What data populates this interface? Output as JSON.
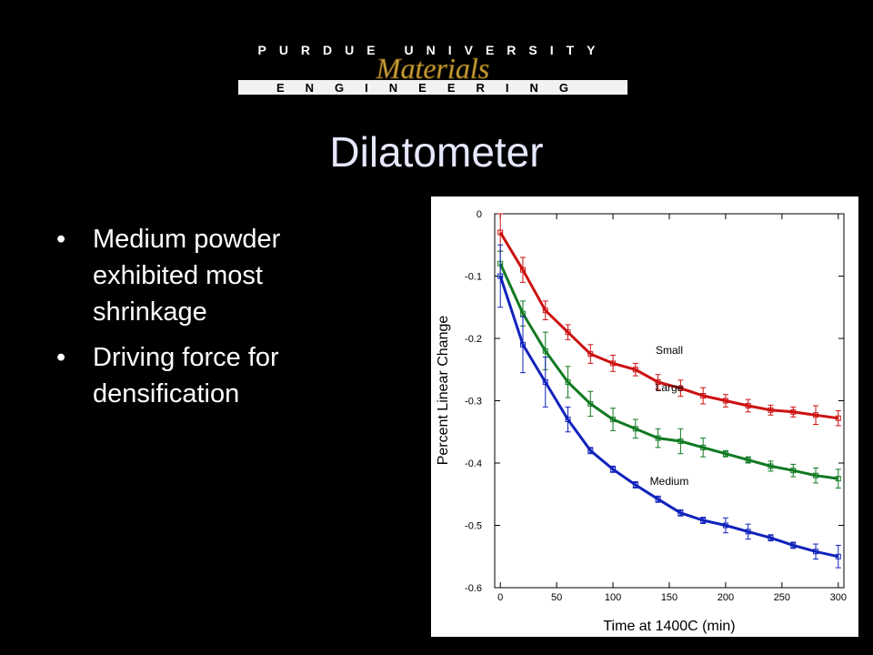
{
  "header": {
    "university": "PURDUE UNIVERSITY",
    "department": "Materials",
    "school": "ENGINEERING",
    "colors": {
      "gold": "#c9a23a",
      "black": "#000000"
    }
  },
  "slide": {
    "title": "Dilatometer",
    "bullets": [
      "Medium powder exhibited most shrinkage",
      "Driving force for densification"
    ],
    "bullet_glyph": "•"
  },
  "chart_data": {
    "type": "line",
    "title": "",
    "xlabel": "Time at 1400C (min)",
    "ylabel": "Percent Linear Change",
    "xlim": [
      -5,
      305
    ],
    "ylim": [
      -0.6,
      0
    ],
    "xticks": [
      0,
      50,
      100,
      150,
      200,
      250,
      300
    ],
    "yticks": [
      0,
      -0.1,
      -0.2,
      -0.3,
      -0.4,
      -0.5,
      -0.6
    ],
    "x": [
      0,
      20,
      40,
      60,
      80,
      100,
      120,
      140,
      160,
      180,
      200,
      220,
      240,
      260,
      280,
      300
    ],
    "series": [
      {
        "name": "Small",
        "color": "#cc1111",
        "label_at": [
          150,
          -0.225
        ],
        "values": [
          -0.03,
          -0.09,
          -0.155,
          -0.19,
          -0.225,
          -0.24,
          -0.25,
          -0.27,
          -0.28,
          -0.292,
          -0.3,
          -0.308,
          -0.315,
          -0.318,
          -0.323,
          -0.328
        ],
        "errors": [
          0.03,
          0.02,
          0.015,
          0.012,
          0.015,
          0.013,
          0.01,
          0.012,
          0.013,
          0.013,
          0.01,
          0.01,
          0.008,
          0.008,
          0.015,
          0.012
        ]
      },
      {
        "name": "Large",
        "color": "#117a22",
        "label_at": [
          150,
          -0.285
        ],
        "values": [
          -0.08,
          -0.16,
          -0.22,
          -0.27,
          -0.305,
          -0.33,
          -0.345,
          -0.36,
          -0.365,
          -0.375,
          -0.385,
          -0.395,
          -0.405,
          -0.412,
          -0.42,
          -0.425
        ],
        "errors": [
          0.02,
          0.02,
          0.03,
          0.025,
          0.02,
          0.018,
          0.015,
          0.015,
          0.02,
          0.015,
          0.005,
          0.005,
          0.008,
          0.01,
          0.012,
          0.015
        ]
      },
      {
        "name": "Medium",
        "color": "#1122bb",
        "label_at": [
          150,
          -0.435
        ],
        "values": [
          -0.1,
          -0.21,
          -0.27,
          -0.33,
          -0.38,
          -0.41,
          -0.435,
          -0.458,
          -0.48,
          -0.492,
          -0.5,
          -0.51,
          -0.52,
          -0.532,
          -0.542,
          -0.55
        ],
        "errors": [
          0.05,
          0.045,
          0.04,
          0.02,
          0.005,
          0.005,
          0.005,
          0.005,
          0.005,
          0.005,
          0.012,
          0.012,
          0.005,
          0.005,
          0.012,
          0.018
        ]
      }
    ],
    "grid": false,
    "legend": "inline labels"
  }
}
